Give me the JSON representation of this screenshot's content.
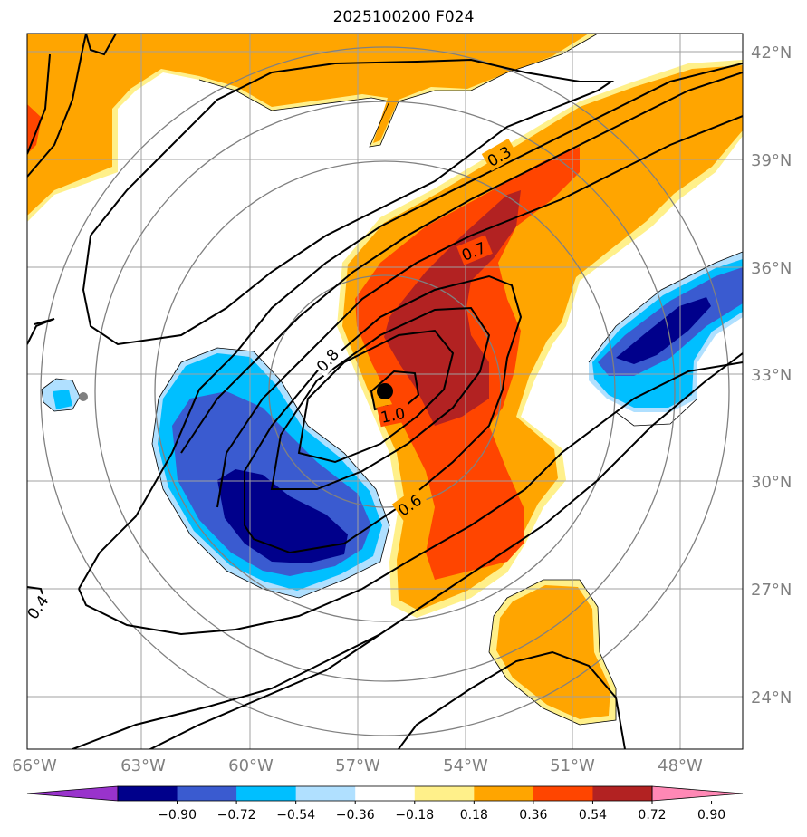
{
  "title": "2025100200 F024",
  "map": {
    "lat_labels": [
      "42°N",
      "39°N",
      "36°N",
      "33°N",
      "30°N",
      "27°N",
      "24°N"
    ],
    "lon_labels": [
      "66°W",
      "63°W",
      "60°W",
      "57°W",
      "54°W",
      "51°W",
      "48°W"
    ],
    "contour_labels": [
      "0.3",
      "0.7",
      "0.8",
      "1.0",
      "0.6",
      "0.4"
    ],
    "center_marker": "storm-center"
  },
  "colorbar": {
    "colors": [
      "#9933cc",
      "#00008b",
      "#3a5bd0",
      "#00bfff",
      "#b0e0ff",
      "#ffffff",
      "#fff08a",
      "#ffa500",
      "#ff4500",
      "#b22222",
      "#ff88b5"
    ],
    "tick_labels": [
      "−0.90",
      "−0.72",
      "−0.54",
      "−0.36",
      "−0.18",
      "0.18",
      "0.36",
      "0.54",
      "0.72",
      "0.90"
    ]
  }
}
